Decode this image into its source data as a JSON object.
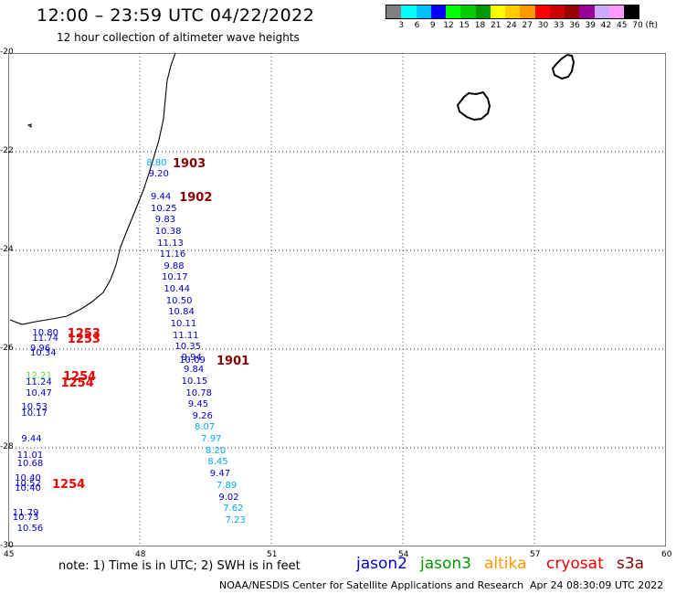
{
  "header": {
    "title": "12:00 – 23:59 UTC 04/22/2022",
    "subtitle": "12 hour collection of altimeter wave heights"
  },
  "color_scale": {
    "unit": "(ft)",
    "colors": [
      "#808080",
      "#00ffff",
      "#00bfff",
      "#0000ff",
      "#00ff00",
      "#00cc00",
      "#009900",
      "#ffff00",
      "#ffcc00",
      "#ff9900",
      "#ff0000",
      "#cc0000",
      "#990000",
      "#990099",
      "#ccaaff",
      "#ff99ff",
      "#000000"
    ],
    "labels": [
      "3",
      "6",
      "9",
      "12",
      "15",
      "18",
      "21",
      "24",
      "27",
      "30",
      "33",
      "36",
      "39",
      "42",
      "45",
      "70"
    ]
  },
  "map": {
    "lat_labels": [
      "-20",
      "-22",
      "-24",
      "-26",
      "-28",
      "-30"
    ],
    "lon_labels": [
      "45",
      "48",
      "51",
      "54",
      "57",
      "60"
    ],
    "lat_range": [
      -30,
      -20
    ],
    "lon_range": [
      45,
      60
    ],
    "grid": "dotted"
  },
  "observations": [
    {
      "v": "8.80",
      "lon": 48.15,
      "lat": -22.25,
      "c": "#00aaff"
    },
    {
      "v": "9.20",
      "lon": 48.2,
      "lat": -22.48,
      "c": "#0000cc"
    },
    {
      "v": "9.44",
      "lon": 48.25,
      "lat": -22.95,
      "c": "#0000cc"
    },
    {
      "v": "10.25",
      "lon": 48.25,
      "lat": -23.18,
      "c": "#0000cc"
    },
    {
      "v": "9.83",
      "lon": 48.35,
      "lat": -23.41,
      "c": "#0000cc"
    },
    {
      "v": "10.38",
      "lon": 48.35,
      "lat": -23.64,
      "c": "#0000cc"
    },
    {
      "v": "11.13",
      "lon": 48.4,
      "lat": -23.88,
      "c": "#0000cc"
    },
    {
      "v": "11.16",
      "lon": 48.45,
      "lat": -24.11,
      "c": "#0000cc"
    },
    {
      "v": "9.88",
      "lon": 48.55,
      "lat": -24.35,
      "c": "#0000cc"
    },
    {
      "v": "10.17",
      "lon": 48.5,
      "lat": -24.58,
      "c": "#0000cc"
    },
    {
      "v": "10.44",
      "lon": 48.55,
      "lat": -24.81,
      "c": "#0000cc"
    },
    {
      "v": "10.50",
      "lon": 48.6,
      "lat": -25.05,
      "c": "#0000cc"
    },
    {
      "v": "10.84",
      "lon": 48.65,
      "lat": -25.28,
      "c": "#0000cc"
    },
    {
      "v": "10.11",
      "lon": 48.7,
      "lat": -25.52,
      "c": "#0000cc"
    },
    {
      "v": "11.11",
      "lon": 48.75,
      "lat": -25.75,
      "c": "#0000cc"
    },
    {
      "v": "10.35",
      "lon": 48.8,
      "lat": -25.98,
      "c": "#0000cc"
    },
    {
      "v": "9.94",
      "lon": 48.95,
      "lat": -26.2,
      "c": "#0000cc"
    },
    {
      "v": "10.09",
      "lon": 48.9,
      "lat": -26.25,
      "c": "#0000cc"
    },
    {
      "v": "9.84",
      "lon": 49.0,
      "lat": -26.45,
      "c": "#0000cc"
    },
    {
      "v": "10.15",
      "lon": 48.95,
      "lat": -26.68,
      "c": "#0000cc"
    },
    {
      "v": "10.78",
      "lon": 49.05,
      "lat": -26.92,
      "c": "#0000cc"
    },
    {
      "v": "9.45",
      "lon": 49.1,
      "lat": -27.15,
      "c": "#0000cc"
    },
    {
      "v": "9.26",
      "lon": 49.2,
      "lat": -27.39,
      "c": "#0000cc"
    },
    {
      "v": "8.07",
      "lon": 49.25,
      "lat": -27.62,
      "c": "#00aaff"
    },
    {
      "v": "7.97",
      "lon": 49.4,
      "lat": -27.85,
      "c": "#00aaff"
    },
    {
      "v": "8.20",
      "lon": 49.5,
      "lat": -28.09,
      "c": "#00aaff"
    },
    {
      "v": "8.45",
      "lon": 49.55,
      "lat": -28.32,
      "c": "#00aaff"
    },
    {
      "v": "9.47",
      "lon": 49.6,
      "lat": -28.55,
      "c": "#0000cc"
    },
    {
      "v": "7.89",
      "lon": 49.75,
      "lat": -28.79,
      "c": "#00aaff"
    },
    {
      "v": "9.02",
      "lon": 49.8,
      "lat": -29.03,
      "c": "#0000cc"
    },
    {
      "v": "7.62",
      "lon": 49.9,
      "lat": -29.26,
      "c": "#00aaff"
    },
    {
      "v": "7.23",
      "lon": 49.95,
      "lat": -29.5,
      "c": "#00aaff"
    },
    {
      "v": "10.80",
      "lon": 45.55,
      "lat": -25.7,
      "c": "#0000cc"
    },
    {
      "v": "11.74",
      "lon": 45.55,
      "lat": -25.82,
      "c": "#0000cc"
    },
    {
      "v": "9.96",
      "lon": 45.5,
      "lat": -26.02,
      "c": "#0000cc"
    },
    {
      "v": "10.34",
      "lon": 45.5,
      "lat": -26.12,
      "c": "#0000cc"
    },
    {
      "v": "12.21",
      "lon": 45.4,
      "lat": -26.58,
      "c": "#55dd55"
    },
    {
      "v": "11.24",
      "lon": 45.4,
      "lat": -26.7,
      "c": "#0000cc"
    },
    {
      "v": "10.47",
      "lon": 45.4,
      "lat": -26.92,
      "c": "#0000cc"
    },
    {
      "v": "10.53",
      "lon": 45.3,
      "lat": -27.2,
      "c": "#0000cc"
    },
    {
      "v": "10.17",
      "lon": 45.3,
      "lat": -27.33,
      "c": "#0000cc"
    },
    {
      "v": "9.44",
      "lon": 45.3,
      "lat": -27.85,
      "c": "#0000cc"
    },
    {
      "v": "11.01",
      "lon": 45.2,
      "lat": -28.18,
      "c": "#0000cc"
    },
    {
      "v": "10.68",
      "lon": 45.2,
      "lat": -28.35,
      "c": "#0000cc"
    },
    {
      "v": "10.40",
      "lon": 45.15,
      "lat": -28.65,
      "c": "#0000cc"
    },
    {
      "v": "10.52",
      "lon": 45.15,
      "lat": -28.75,
      "c": "#0000cc"
    },
    {
      "v": "10.40",
      "lon": 45.15,
      "lat": -28.85,
      "c": "#0000cc"
    },
    {
      "v": "11.79",
      "lon": 45.1,
      "lat": -29.35,
      "c": "#0000cc"
    },
    {
      "v": "10.73",
      "lon": 45.1,
      "lat": -29.45,
      "c": "#0000cc"
    },
    {
      "v": "10.56",
      "lon": 45.2,
      "lat": -29.66,
      "c": "#0000cc"
    }
  ],
  "pass_labels": [
    {
      "t": "1903",
      "lon": 48.75,
      "lat": -22.25,
      "c": "#880000"
    },
    {
      "t": "1902",
      "lon": 48.9,
      "lat": -22.95,
      "c": "#880000"
    },
    {
      "t": "1901",
      "lon": 49.75,
      "lat": -26.25,
      "c": "#880000"
    },
    {
      "t": "1253",
      "lon": 46.35,
      "lat": -25.7,
      "c": "#ee0000"
    },
    {
      "t": "1253",
      "lon": 46.35,
      "lat": -25.82,
      "c": "#ee0000"
    },
    {
      "t": "1254",
      "lon": 46.25,
      "lat": -26.58,
      "c": "#ee0000"
    },
    {
      "t": "1254",
      "lon": 46.2,
      "lat": -26.7,
      "c": "#ee0000"
    },
    {
      "t": "1254",
      "lon": 46.0,
      "lat": -28.75,
      "c": "#ee0000"
    }
  ],
  "footer": {
    "note": "note: 1) Time is in UTC; 2) SWH is in feet",
    "satellites": [
      {
        "name": "jason2",
        "color": "#0000cc"
      },
      {
        "name": "jason3",
        "color": "#009900"
      },
      {
        "name": "altika",
        "color": "#ff9900"
      },
      {
        "name": "cryosat",
        "color": "#ee0000"
      },
      {
        "name": "s3a",
        "color": "#880000"
      }
    ],
    "credit": "NOAA/NESDIS Center for Satellite Applications and Research",
    "timestamp": "Apr 24 08:30:09 UTC 2022"
  }
}
